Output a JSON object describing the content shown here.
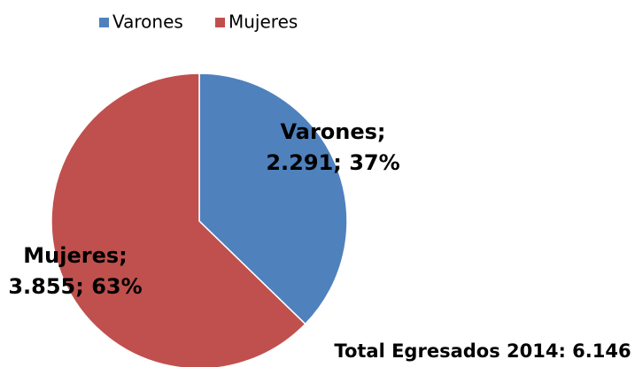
{
  "chart_data": {
    "type": "pie",
    "categories": [
      "Varones",
      "Mujeres"
    ],
    "values": [
      2291,
      3855
    ],
    "label_names": [
      "Varones;",
      "Mujeres;"
    ],
    "value_labels": [
      "2.291; 37%",
      "3.855; 63%"
    ],
    "colors": [
      "#4f81bd",
      "#c0504d"
    ],
    "legend": "top",
    "annotation": "Total Egresados 2014: 6.146"
  }
}
